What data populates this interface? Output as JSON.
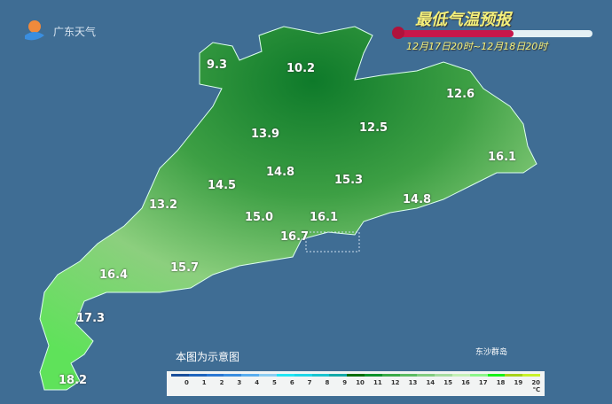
{
  "header": {
    "title": "最低气温预报",
    "time_range": "12月17日20时~12月18日20时",
    "logo_text": "广东天气"
  },
  "thermometer": {
    "fill_fraction": 0.6,
    "color": "#c8174a"
  },
  "map": {
    "labels": [
      {
        "name": "9.3",
        "value": "9.3"
      },
      {
        "name": "10.2",
        "value": "10.2"
      },
      {
        "name": "12.6",
        "value": "12.6"
      },
      {
        "name": "13.9",
        "value": "13.9"
      },
      {
        "name": "12.5",
        "value": "12.5"
      },
      {
        "name": "16.1",
        "value": "16.1"
      },
      {
        "name": "14.8",
        "value": "14.8"
      },
      {
        "name": "15.3",
        "value": "15.3"
      },
      {
        "name": "14.5",
        "value": "14.5"
      },
      {
        "name": "14.8",
        "value": "14.8"
      },
      {
        "name": "13.2",
        "value": "13.2"
      },
      {
        "name": "15.0",
        "value": "15.0"
      },
      {
        "name": "16.1",
        "value": "16.1"
      },
      {
        "name": "16.7",
        "value": "16.7"
      },
      {
        "name": "16.4",
        "value": "16.4"
      },
      {
        "name": "15.7",
        "value": "15.7"
      },
      {
        "name": "17.3",
        "value": "17.3"
      },
      {
        "name": "18.2",
        "value": "18.2"
      }
    ],
    "note": "本图为示意图",
    "island": "东沙群岛"
  },
  "legend": {
    "ticks": [
      "0",
      "1",
      "2",
      "3",
      "4",
      "5",
      "6",
      "7",
      "8",
      "9",
      "10",
      "11",
      "12",
      "13",
      "14",
      "15",
      "16",
      "17",
      "18",
      "19",
      "20 ℃"
    ],
    "colors": [
      "#1a4f9c",
      "#1f64bd",
      "#2b78d3",
      "#3a8ee0",
      "#5aaeef",
      "#8ccdf2",
      "#22e6f4",
      "#1ed6e8",
      "#1ac4cf",
      "#14a9a8",
      "#006e0a",
      "#0d922c",
      "#3aaa48",
      "#5cbb62",
      "#82cc80",
      "#a6dca0",
      "#c4f0b6",
      "#8cf58a",
      "#18f018",
      "#a6d21a",
      "#c8f22a"
    ],
    "watermark": "@广东天气"
  }
}
